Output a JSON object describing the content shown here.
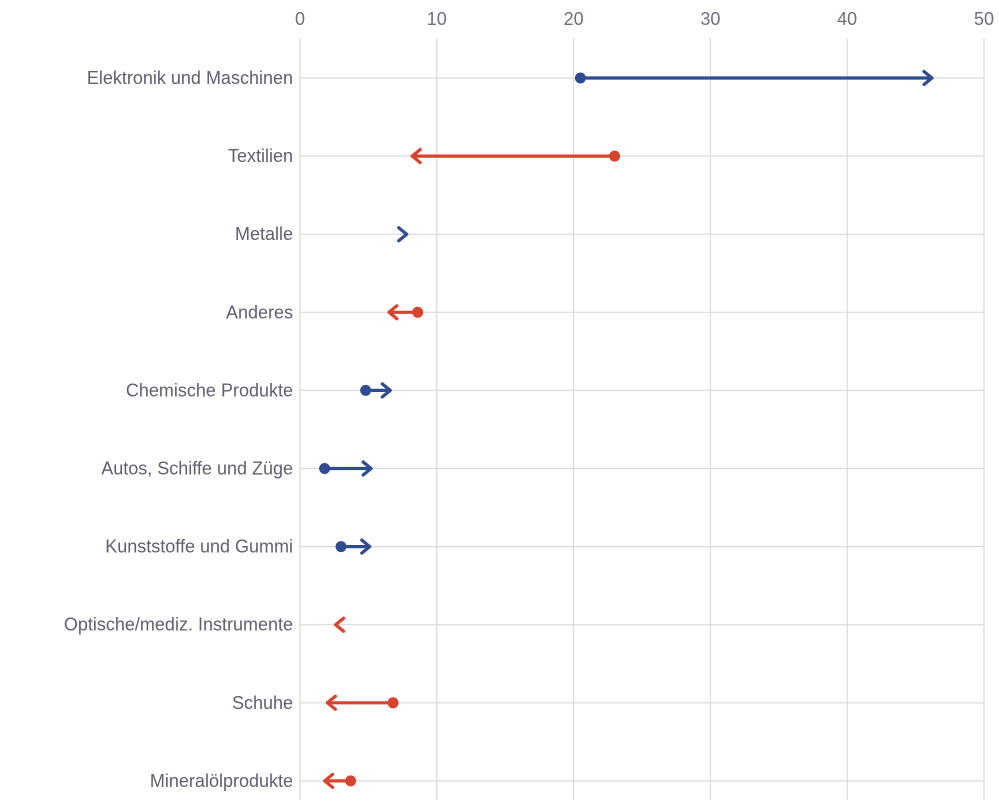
{
  "chart_data": {
    "type": "arrow-dot",
    "title": "",
    "xlabel": "",
    "ylabel": "",
    "xlim": [
      0,
      50
    ],
    "x_ticks": [
      0,
      10,
      20,
      30,
      40,
      50
    ],
    "grid": true,
    "colors": {
      "increase": "#2f4b93",
      "decrease": "#d8432e",
      "grid": "#d9d9e0",
      "label": "#5f6072"
    },
    "categories": [
      {
        "label": "Elektronik und Maschinen",
        "start": 20.5,
        "end": 46.2
      },
      {
        "label": "Textilien",
        "start": 23.0,
        "end": 8.2
      },
      {
        "label": "Metalle",
        "start": 7.3,
        "end": 7.8
      },
      {
        "label": "Anderes",
        "start": 8.6,
        "end": 6.5
      },
      {
        "label": "Chemische Produkte",
        "start": 4.8,
        "end": 6.6
      },
      {
        "label": "Autos, Schiffe und Züge",
        "start": 1.8,
        "end": 5.2
      },
      {
        "label": "Kunststoffe und Gummi",
        "start": 3.0,
        "end": 5.1
      },
      {
        "label": "Optische/mediz. Instrumente",
        "start": 3.2,
        "end": 2.6
      },
      {
        "label": "Schuhe",
        "start": 6.8,
        "end": 2.0
      },
      {
        "label": "Mineralölprodukte",
        "start": 3.7,
        "end": 1.8
      }
    ]
  }
}
